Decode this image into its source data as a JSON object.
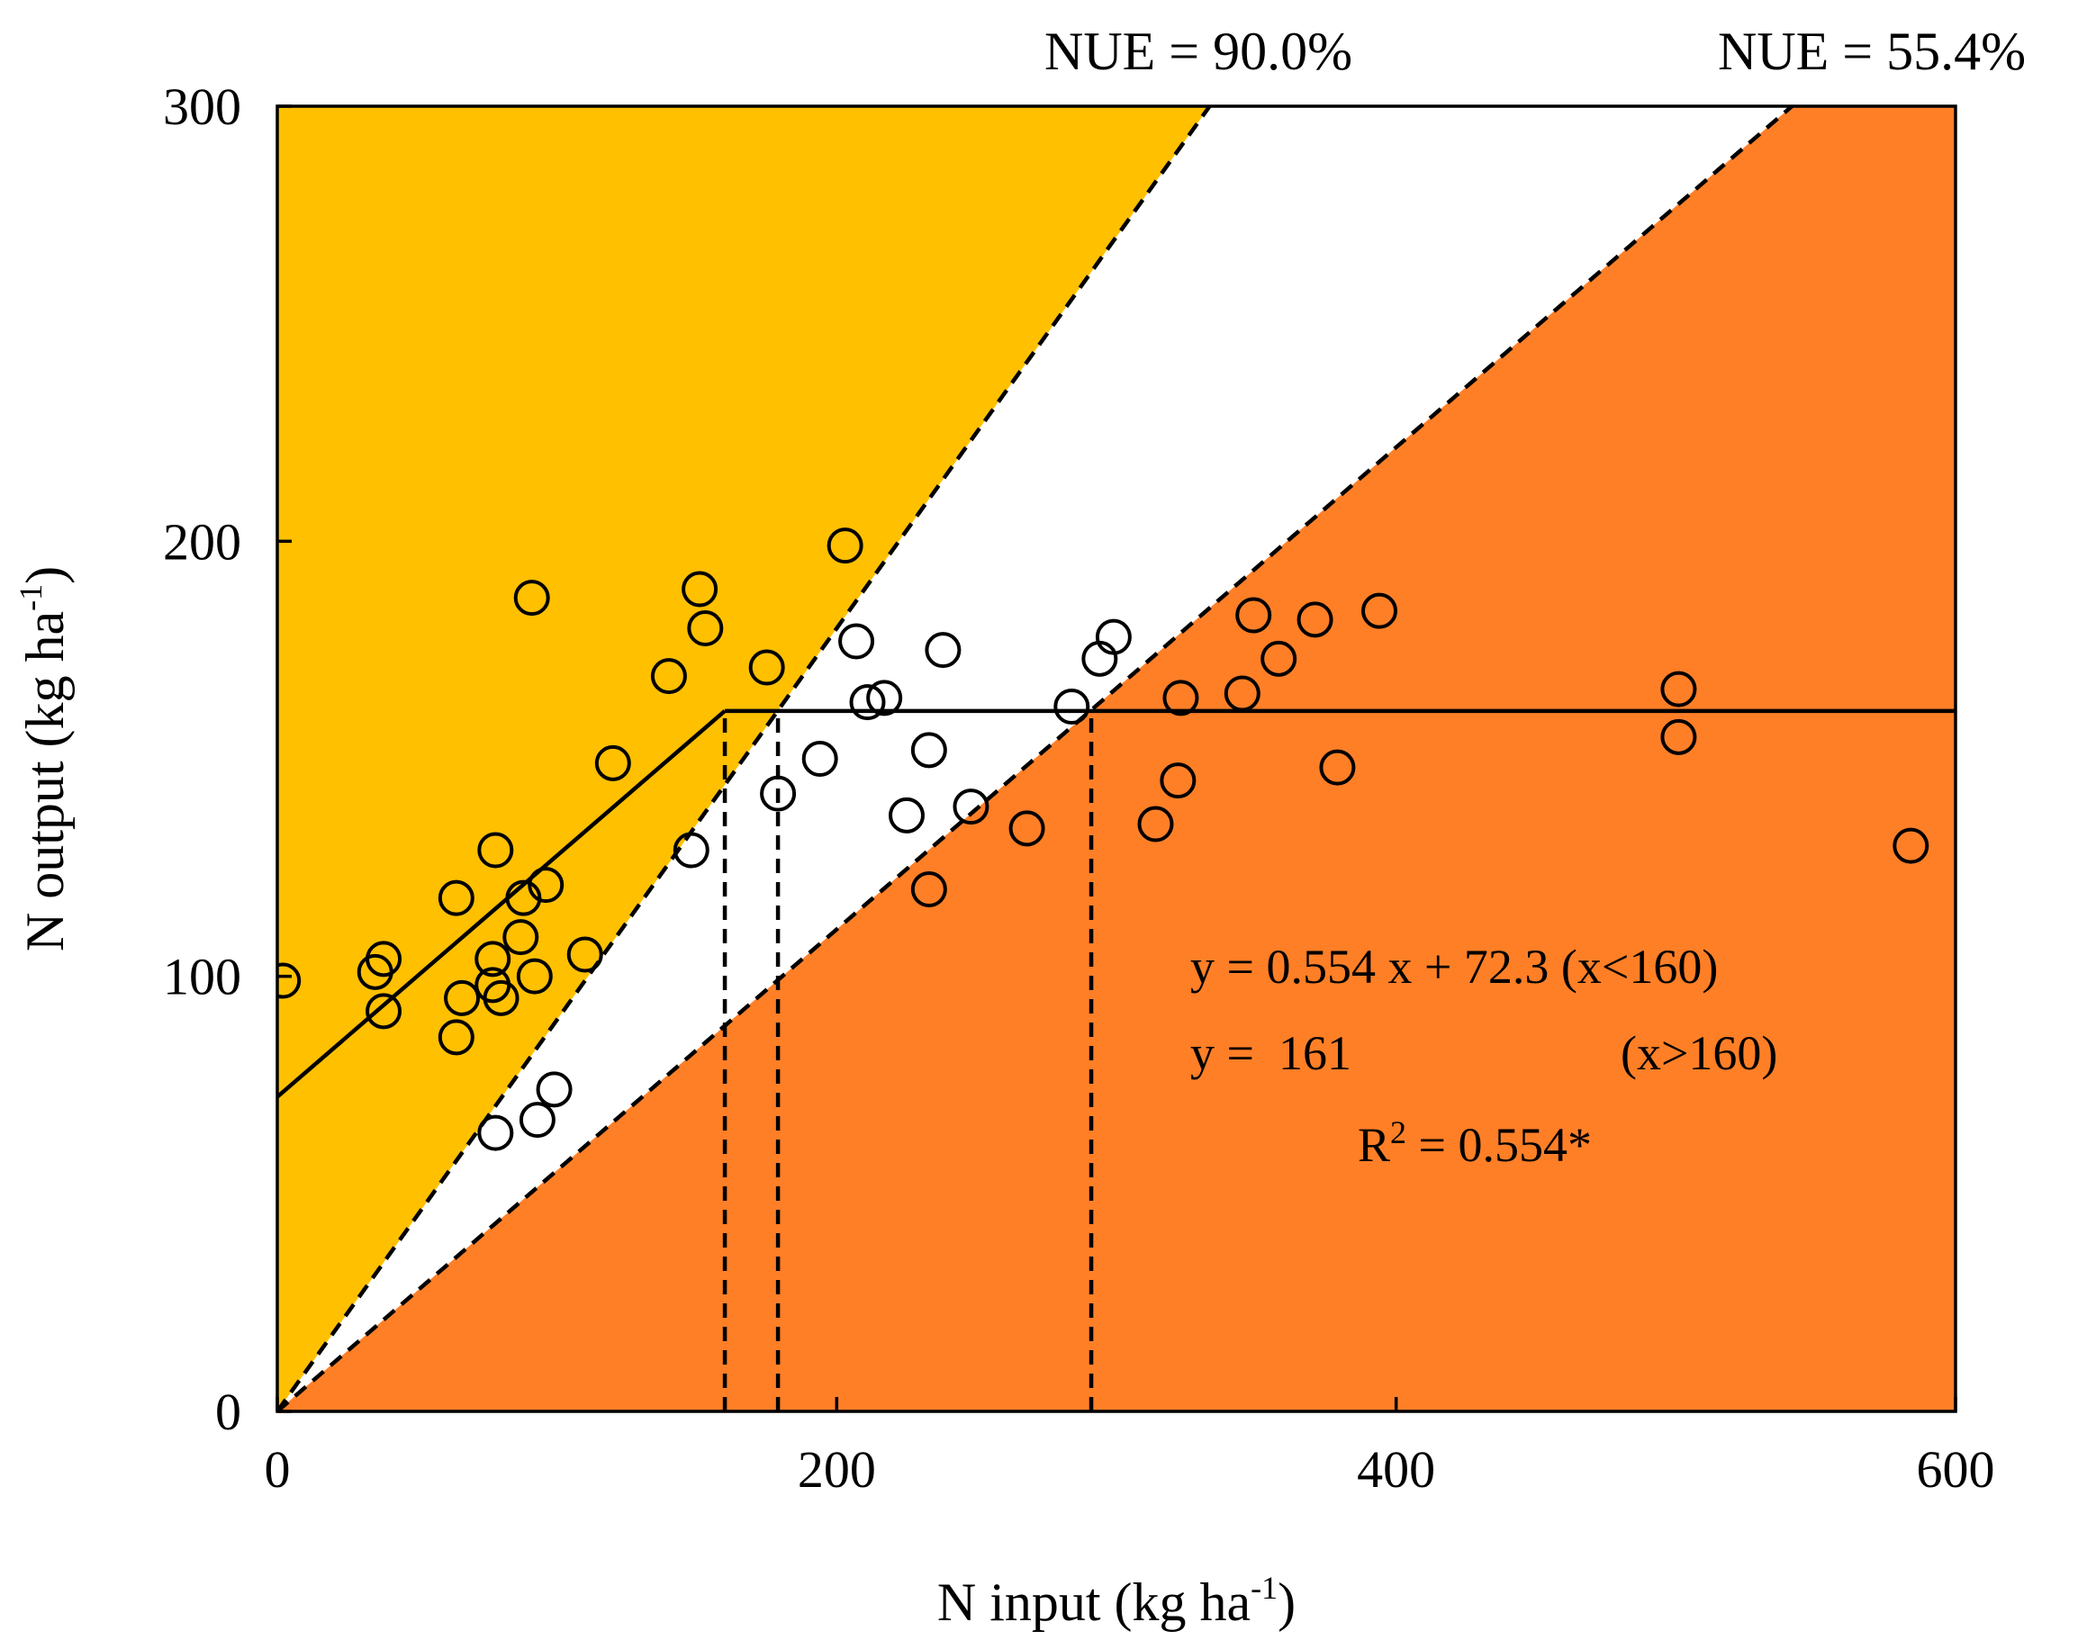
{
  "chart_data": {
    "type": "scatter",
    "title": "",
    "xlabel": {
      "main": "N input (kg ha",
      "sup": "-1",
      "close": ")"
    },
    "ylabel": {
      "main": "N output (kg ha",
      "sup": "-1",
      "close": ")"
    },
    "xlim": [
      0,
      600
    ],
    "ylim": [
      0,
      300
    ],
    "xticks": [
      0,
      200,
      400,
      600
    ],
    "yticks": [
      0,
      100,
      200,
      300
    ],
    "grid": false,
    "colors": {
      "upper_region": "#FFC000",
      "lower_region": "#FF7F27",
      "middle_region": "#FFFFFF",
      "ink": "#000000"
    },
    "nue_lines": [
      {
        "name": "NUE = 90.0%",
        "label": "NUE = 90.0%",
        "slope": 0.9
      },
      {
        "name": "NUE = 55.4%",
        "label": "NUE = 55.4%",
        "slope": 0.554
      }
    ],
    "fit": {
      "slope": 0.554,
      "intercept": 72.3,
      "breakpoint": 160,
      "plateau": 161,
      "eq1": "y = 0.554 x + 72.3 (x<160)",
      "eq2_left": "y =  161",
      "eq2_right": "(x>160)",
      "r2_prefix": "R",
      "r2_sup": "2",
      "r2_suffix": " = 0.554*"
    },
    "vertical_lines_x": [
      160,
      179,
      291
    ],
    "points": [
      [
        2,
        99
      ],
      [
        35,
        101
      ],
      [
        38,
        104
      ],
      [
        38,
        92
      ],
      [
        64,
        118
      ],
      [
        64,
        86
      ],
      [
        66,
        95
      ],
      [
        77,
        104
      ],
      [
        78,
        129
      ],
      [
        77,
        98
      ],
      [
        80,
        95
      ],
      [
        87,
        109
      ],
      [
        88,
        118
      ],
      [
        91,
        187
      ],
      [
        92,
        100
      ],
      [
        96,
        121
      ],
      [
        110,
        105
      ],
      [
        120,
        149
      ],
      [
        78,
        64
      ],
      [
        93,
        67
      ],
      [
        99,
        74
      ],
      [
        140,
        169
      ],
      [
        148,
        129
      ],
      [
        151,
        189
      ],
      [
        153,
        180
      ],
      [
        175,
        171
      ],
      [
        179,
        142
      ],
      [
        194,
        150
      ],
      [
        203,
        199
      ],
      [
        207,
        177
      ],
      [
        211,
        163
      ],
      [
        217,
        164
      ],
      [
        225,
        137
      ],
      [
        233,
        152
      ],
      [
        233,
        120
      ],
      [
        238,
        175
      ],
      [
        248,
        139
      ],
      [
        268,
        134
      ],
      [
        284,
        162
      ],
      [
        294,
        173
      ],
      [
        299,
        178
      ],
      [
        314,
        135
      ],
      [
        322,
        145
      ],
      [
        323,
        164
      ],
      [
        345,
        165
      ],
      [
        349,
        183
      ],
      [
        358,
        173
      ],
      [
        371,
        182
      ],
      [
        379,
        148
      ],
      [
        394,
        184
      ],
      [
        501,
        166
      ],
      [
        501,
        155
      ],
      [
        584,
        130
      ]
    ]
  }
}
